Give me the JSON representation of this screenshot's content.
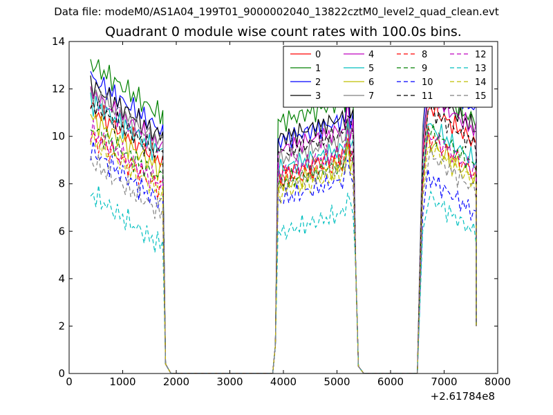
{
  "suptitle": "Data file: modeM0/AS1A04_199T01_9000002040_13822cztM0_level2_quad_clean.evt",
  "chart_data": {
    "type": "line",
    "title": "Quadrant 0 module wise count rates with 100.0s bins.",
    "xlabel": "",
    "ylabel": "",
    "x_offset_label": "+2.61784e8",
    "xlim": [
      0,
      8000
    ],
    "ylim": [
      0,
      14
    ],
    "xticks": [
      "0",
      "1000",
      "2000",
      "3000",
      "4000",
      "5000",
      "6000",
      "7000",
      "8000"
    ],
    "yticks": [
      "0",
      "2",
      "4",
      "6",
      "8",
      "10",
      "12",
      "14"
    ],
    "legend_position": "top-right",
    "legend_columns": 4,
    "segments": [
      {
        "start": 400,
        "end": 1700
      },
      {
        "start": 3900,
        "end": 5300
      },
      {
        "start": 6700,
        "end": 7600
      }
    ],
    "gaps": [
      {
        "start": 1900,
        "end": 3700
      },
      {
        "start": 5500,
        "end": 6400
      }
    ],
    "series": [
      {
        "name": "0",
        "color": "#ff0000",
        "dash": "solid",
        "levels": [
          11.2,
          8.4,
          11.3
        ]
      },
      {
        "name": "1",
        "color": "#008000",
        "dash": "solid",
        "levels": [
          13.1,
          10.6,
          12.2
        ]
      },
      {
        "name": "2",
        "color": "#0000ff",
        "dash": "solid",
        "levels": [
          12.5,
          9.8,
          12.7
        ]
      },
      {
        "name": "3",
        "color": "#000000",
        "dash": "solid",
        "levels": [
          12.2,
          9.9,
          11.9
        ]
      },
      {
        "name": "4",
        "color": "#bf00bf",
        "dash": "solid",
        "levels": [
          11.8,
          9.4,
          11.8
        ]
      },
      {
        "name": "5",
        "color": "#00bfbf",
        "dash": "solid",
        "levels": [
          11.5,
          8.6,
          10.5
        ]
      },
      {
        "name": "6",
        "color": "#bfbf00",
        "dash": "solid",
        "levels": [
          10.8,
          7.9,
          9.8
        ]
      },
      {
        "name": "7",
        "color": "#808080",
        "dash": "solid",
        "levels": [
          11.9,
          9.0,
          13.0
        ]
      },
      {
        "name": "8",
        "color": "#ff0000",
        "dash": "dashed",
        "levels": [
          10.0,
          8.1,
          10.0
        ]
      },
      {
        "name": "9",
        "color": "#008000",
        "dash": "dashed",
        "levels": [
          10.4,
          8.0,
          10.3
        ]
      },
      {
        "name": "10",
        "color": "#0000ff",
        "dash": "dashed",
        "levels": [
          9.4,
          7.3,
          8.3
        ]
      },
      {
        "name": "11",
        "color": "#000000",
        "dash": "dashed",
        "levels": [
          11.4,
          9.3,
          11.2
        ]
      },
      {
        "name": "12",
        "color": "#bf00bf",
        "dash": "dashed",
        "levels": [
          10.2,
          8.5,
          10.1
        ]
      },
      {
        "name": "13",
        "color": "#00bfbf",
        "dash": "dashed",
        "levels": [
          7.6,
          5.9,
          7.5
        ]
      },
      {
        "name": "14",
        "color": "#bfbf00",
        "dash": "dashed",
        "levels": [
          9.9,
          7.6,
          9.6
        ]
      },
      {
        "name": "15",
        "color": "#808080",
        "dash": "dashed",
        "levels": [
          9.0,
          7.9,
          9.3
        ]
      }
    ]
  }
}
